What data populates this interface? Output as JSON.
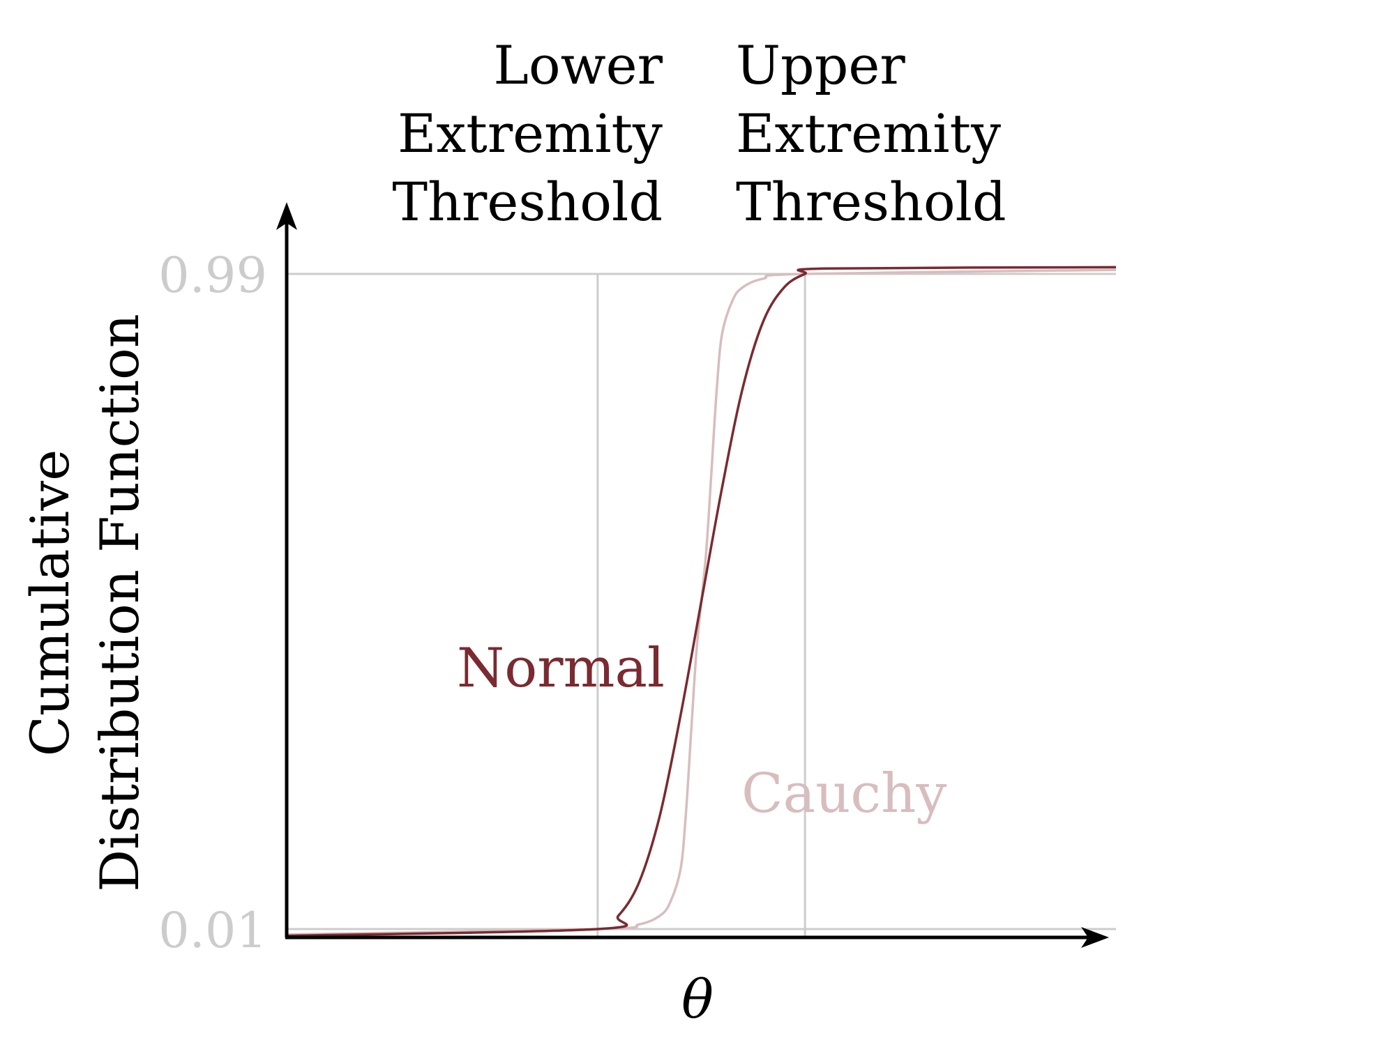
{
  "chart_data": {
    "type": "line",
    "xlabel": "θ",
    "ylabel_lines": [
      "Cumulative",
      "Distribution Function"
    ],
    "yticks": [
      {
        "label": "0.99",
        "value": 0.99
      },
      {
        "label": "0.01",
        "value": 0.01
      }
    ],
    "ylim": [
      0.0,
      1.0
    ],
    "xlim": [
      -4.0,
      4.0
    ],
    "thresholds": [
      {
        "lines": [
          "Lower",
          "Extremity",
          "Threshold"
        ],
        "x": -1.0
      },
      {
        "lines": [
          "Upper",
          "Extremity",
          "Threshold"
        ],
        "x": 1.0
      }
    ],
    "series": [
      {
        "name": "Normal",
        "color": "#7a2a30",
        "x": [
          -4.0,
          -1.0,
          -0.8,
          -0.6,
          -0.4,
          -0.2,
          0.0,
          0.2,
          0.4,
          0.6,
          0.8,
          1.0,
          1.2,
          4.0
        ],
        "y": [
          0.0,
          0.01,
          0.03,
          0.08,
          0.18,
          0.33,
          0.5,
          0.67,
          0.82,
          0.92,
          0.97,
          0.99,
          0.998,
          1.0
        ]
      },
      {
        "name": "Cauchy",
        "color": "#d8bdbe",
        "x": [
          -4.0,
          -1.0,
          -0.6,
          -0.4,
          -0.3,
          -0.2,
          -0.15,
          -0.1,
          -0.05,
          0.0,
          0.05,
          0.1,
          0.15,
          0.2,
          0.3,
          0.4,
          0.6,
          1.0,
          4.0
        ],
        "y": [
          0.002,
          0.01,
          0.017,
          0.03,
          0.05,
          0.1,
          0.18,
          0.3,
          0.42,
          0.5,
          0.58,
          0.7,
          0.82,
          0.9,
          0.95,
          0.97,
          0.983,
          0.99,
          0.996
        ]
      }
    ]
  }
}
